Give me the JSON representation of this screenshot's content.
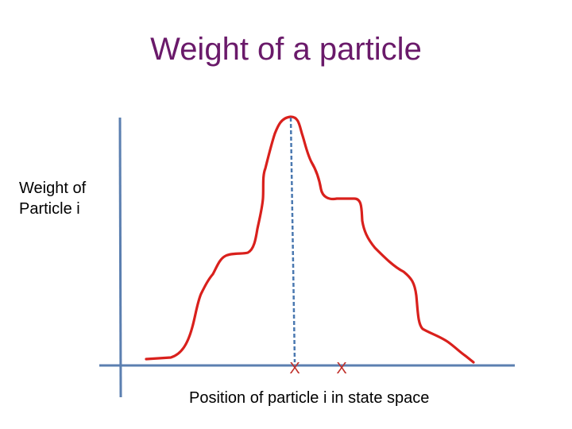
{
  "title": "Weight of a particle",
  "y_label": {
    "line1": "Weight of",
    "line2": "Particle i"
  },
  "x_label": "Position of particle i in state space",
  "markers": [
    {
      "label": "X"
    },
    {
      "label": "X"
    }
  ],
  "colors": {
    "title": "#6a1a6a",
    "axes": "#5b7fb0",
    "curve": "#d9201c",
    "dashed_line": "#4a78b0",
    "markers": "#c0302a",
    "text": "#000000"
  }
}
